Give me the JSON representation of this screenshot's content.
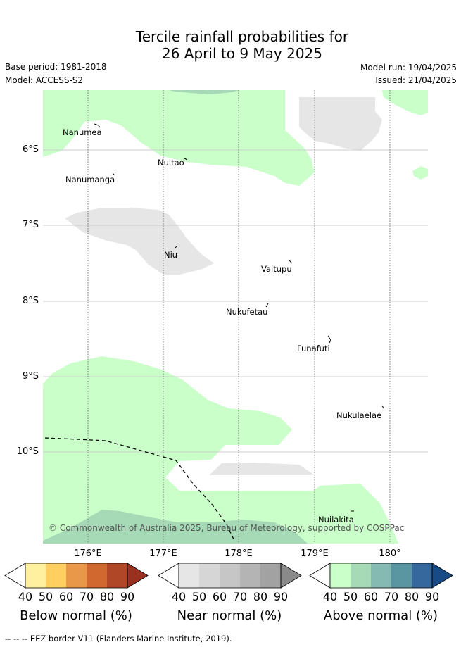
{
  "title_line1": "Tercile rainfall probabilities for",
  "title_line2": "26 April to 9 May 2025",
  "base_period": "Base period: 1981-2018",
  "model": "Model: ACCESS-S2",
  "model_run": "Model run: 19/04/2025",
  "issued": "Issued: 21/04/2025",
  "map": {
    "lat_labels": [
      "6°S",
      "7°S",
      "8°S",
      "9°S",
      "10°S"
    ],
    "lon_labels": [
      "176°E",
      "177°E",
      "178°E",
      "179°E",
      "180°"
    ],
    "islands": [
      "Nanumea",
      "Nuitao",
      "Nanumanga",
      "Niu",
      "Vaitupu",
      "Nukufetau",
      "Funafuti",
      "Nukulaelae",
      "Nuilakita"
    ],
    "copyright": "© Commonwealth of Australia 2025, Bureau of Meteorology, supported by COSPPac"
  },
  "colorbars": {
    "ticks": [
      "40",
      "50",
      "60",
      "70",
      "80",
      "90"
    ],
    "below": {
      "title": "Below normal (%)",
      "colors": [
        "#ffffff",
        "#fff0a0",
        "#ffd060",
        "#e89848",
        "#d06830",
        "#b04828",
        "#9a3020"
      ]
    },
    "near": {
      "title": "Near normal (%)",
      "colors": [
        "#ffffff",
        "#e6e6e6",
        "#d6d6d6",
        "#c6c6c6",
        "#b4b4b4",
        "#a2a2a2",
        "#8a8a8a"
      ]
    },
    "above": {
      "title": "Above normal (%)",
      "colors": [
        "#ffffff",
        "#caffca",
        "#a6dab6",
        "#84bab2",
        "#5a96a2",
        "#36689e",
        "#184a86"
      ]
    }
  },
  "footer": "--  --  -- EEZ border V11 (Flanders Marine Institute, 2019)."
}
